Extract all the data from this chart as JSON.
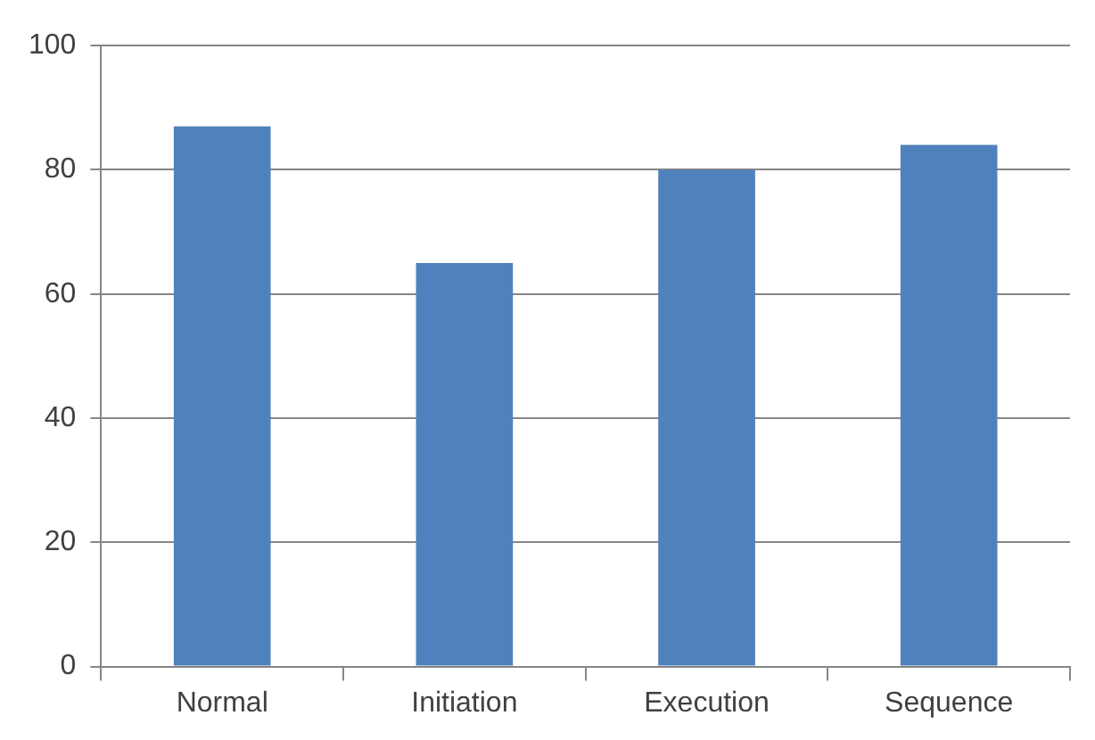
{
  "chart_data": {
    "type": "bar",
    "categories": [
      "Normal",
      "Initiation",
      "Execution",
      "Sequence"
    ],
    "values": [
      87,
      65,
      80,
      84
    ],
    "color": "#4f81bd",
    "ylim": [
      0,
      100
    ],
    "yticks": [
      0,
      20,
      40,
      60,
      80,
      100
    ],
    "grid": "y"
  }
}
